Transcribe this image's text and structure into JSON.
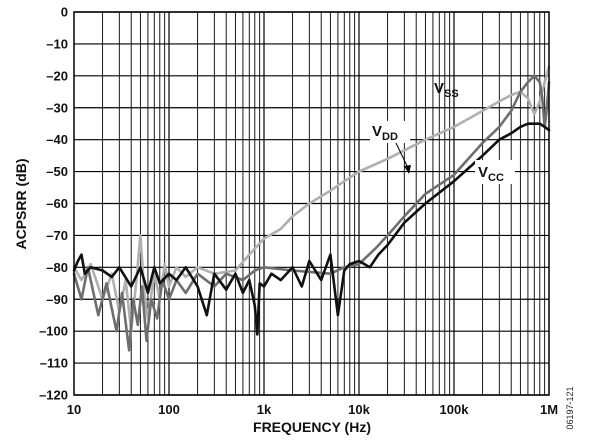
{
  "chart_data": {
    "type": "line",
    "xlabel": "FREQUENCY (Hz)",
    "ylabel": "ACPSRR (dB)",
    "x_scale": "log",
    "xlim": [
      10,
      1000000
    ],
    "ylim": [
      -120,
      0
    ],
    "grid": true,
    "x_ticks": [
      {
        "value": 10,
        "label": "10"
      },
      {
        "value": 100,
        "label": "100"
      },
      {
        "value": 1000,
        "label": "1k"
      },
      {
        "value": 10000,
        "label": "10k"
      },
      {
        "value": 100000,
        "label": "100k"
      },
      {
        "value": 1000000,
        "label": "1M"
      }
    ],
    "y_ticks": [
      {
        "value": 0,
        "label": "0"
      },
      {
        "value": -10,
        "label": "–10"
      },
      {
        "value": -20,
        "label": "–20"
      },
      {
        "value": -30,
        "label": "–30"
      },
      {
        "value": -40,
        "label": "–40"
      },
      {
        "value": -50,
        "label": "–50"
      },
      {
        "value": -60,
        "label": "–60"
      },
      {
        "value": -70,
        "label": "–70"
      },
      {
        "value": -80,
        "label": "–80"
      },
      {
        "value": -90,
        "label": "–90"
      },
      {
        "value": -100,
        "label": "–100"
      },
      {
        "value": -110,
        "label": "–110"
      },
      {
        "value": -120,
        "label": "–120"
      }
    ],
    "series": [
      {
        "name": "VSS",
        "label_main": "V",
        "label_sub": "SS",
        "color": "#b0b0b0",
        "points": [
          [
            10,
            -80
          ],
          [
            12,
            -84
          ],
          [
            15,
            -79
          ],
          [
            20,
            -90
          ],
          [
            25,
            -82
          ],
          [
            30,
            -94
          ],
          [
            35,
            -84
          ],
          [
            40,
            -100
          ],
          [
            45,
            -85
          ],
          [
            50,
            -70
          ],
          [
            55,
            -88
          ],
          [
            60,
            -96
          ],
          [
            70,
            -82
          ],
          [
            80,
            -90
          ],
          [
            90,
            -79
          ],
          [
            100,
            -86
          ],
          [
            120,
            -80
          ],
          [
            150,
            -83
          ],
          [
            200,
            -80
          ],
          [
            300,
            -82
          ],
          [
            500,
            -81
          ],
          [
            700,
            -76
          ],
          [
            1000,
            -71
          ],
          [
            1500,
            -68
          ],
          [
            2000,
            -64
          ],
          [
            3000,
            -60
          ],
          [
            5000,
            -56
          ],
          [
            7000,
            -53
          ],
          [
            10000,
            -50
          ],
          [
            20000,
            -46
          ],
          [
            50000,
            -40
          ],
          [
            100000,
            -36
          ],
          [
            200000,
            -31
          ],
          [
            300000,
            -28
          ],
          [
            400000,
            -26
          ],
          [
            500000,
            -25
          ],
          [
            600000,
            -27
          ],
          [
            700000,
            -32
          ],
          [
            800000,
            -28
          ],
          [
            900000,
            -22
          ],
          [
            1000000,
            -17
          ]
        ]
      },
      {
        "name": "VDD",
        "label_main": "V",
        "label_sub": "DD",
        "color": "#6e6e6e",
        "points": [
          [
            10,
            -82
          ],
          [
            12,
            -90
          ],
          [
            14,
            -80
          ],
          [
            18,
            -95
          ],
          [
            22,
            -85
          ],
          [
            28,
            -100
          ],
          [
            32,
            -88
          ],
          [
            38,
            -106
          ],
          [
            42,
            -90
          ],
          [
            47,
            -98
          ],
          [
            52,
            -86
          ],
          [
            58,
            -103
          ],
          [
            65,
            -90
          ],
          [
            75,
            -96
          ],
          [
            85,
            -84
          ],
          [
            100,
            -90
          ],
          [
            120,
            -84
          ],
          [
            150,
            -88
          ],
          [
            200,
            -82
          ],
          [
            300,
            -86
          ],
          [
            400,
            -82
          ],
          [
            600,
            -84
          ],
          [
            800,
            -81
          ],
          [
            1000,
            -80
          ],
          [
            2000,
            -81
          ],
          [
            5000,
            -82
          ],
          [
            7000,
            -80
          ],
          [
            10000,
            -79
          ],
          [
            15000,
            -74
          ],
          [
            20000,
            -70
          ],
          [
            30000,
            -64
          ],
          [
            50000,
            -57
          ],
          [
            100000,
            -51
          ],
          [
            200000,
            -41
          ],
          [
            300000,
            -36
          ],
          [
            400000,
            -31
          ],
          [
            500000,
            -25
          ],
          [
            600000,
            -22
          ],
          [
            700000,
            -20
          ],
          [
            800000,
            -22
          ],
          [
            850000,
            -27
          ],
          [
            900000,
            -36
          ],
          [
            950000,
            -30
          ],
          [
            1000000,
            -22
          ]
        ]
      },
      {
        "name": "VCC",
        "label_main": "V",
        "label_sub": "CC",
        "color": "#111111",
        "points": [
          [
            10,
            -81
          ],
          [
            11,
            -78
          ],
          [
            12,
            -76
          ],
          [
            13,
            -82
          ],
          [
            15,
            -80
          ],
          [
            20,
            -81
          ],
          [
            25,
            -83
          ],
          [
            30,
            -80
          ],
          [
            40,
            -86
          ],
          [
            50,
            -80
          ],
          [
            60,
            -88
          ],
          [
            70,
            -80
          ],
          [
            80,
            -85
          ],
          [
            100,
            -82
          ],
          [
            120,
            -84
          ],
          [
            150,
            -80
          ],
          [
            200,
            -86
          ],
          [
            250,
            -95
          ],
          [
            300,
            -82
          ],
          [
            400,
            -87
          ],
          [
            500,
            -82
          ],
          [
            600,
            -88
          ],
          [
            700,
            -84
          ],
          [
            800,
            -92
          ],
          [
            850,
            -101
          ],
          [
            900,
            -85
          ],
          [
            1000,
            -86
          ],
          [
            1200,
            -82
          ],
          [
            1500,
            -84
          ],
          [
            2000,
            -80
          ],
          [
            2500,
            -86
          ],
          [
            3000,
            -78
          ],
          [
            4000,
            -84
          ],
          [
            5000,
            -76
          ],
          [
            6000,
            -95
          ],
          [
            7000,
            -81
          ],
          [
            8000,
            -79
          ],
          [
            10000,
            -78
          ],
          [
            13000,
            -80
          ],
          [
            16000,
            -76
          ],
          [
            20000,
            -73
          ],
          [
            30000,
            -66
          ],
          [
            50000,
            -60
          ],
          [
            100000,
            -53
          ],
          [
            200000,
            -45
          ],
          [
            300000,
            -40
          ],
          [
            400000,
            -38
          ],
          [
            500000,
            -36
          ],
          [
            600000,
            -35
          ],
          [
            700000,
            -35
          ],
          [
            800000,
            -35
          ],
          [
            900000,
            -36
          ],
          [
            1000000,
            -37
          ]
        ]
      }
    ]
  },
  "figure_id": "06197-121"
}
